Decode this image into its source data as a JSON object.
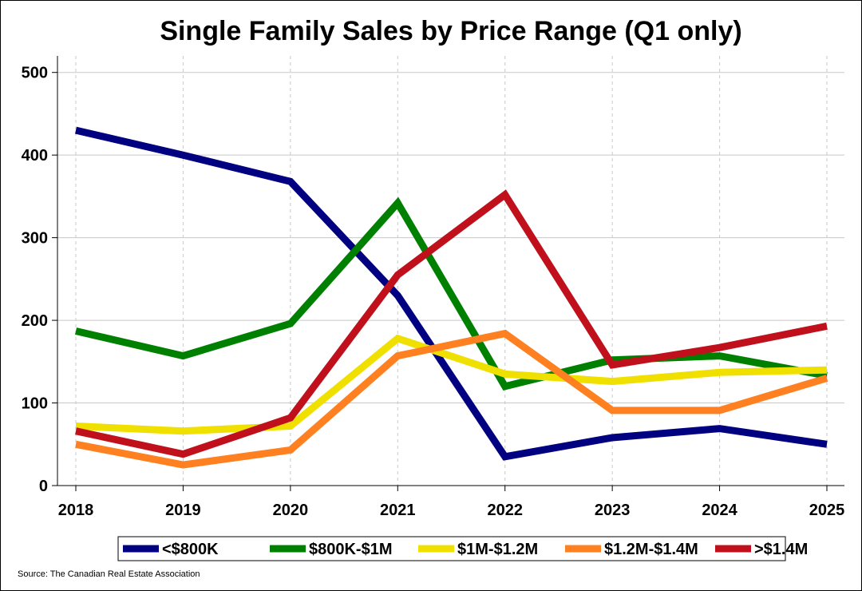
{
  "chart_data": {
    "type": "line",
    "title": "Single Family Sales by Price Range (Q1 only)",
    "xlabel": "",
    "ylabel": "",
    "categories": [
      "2018",
      "2019",
      "2020",
      "2021",
      "2022",
      "2023",
      "2024",
      "2025"
    ],
    "ylim": [
      0,
      520
    ],
    "yticks": [
      0,
      100,
      200,
      300,
      400,
      500
    ],
    "grid": {
      "horizontal": true,
      "vertical": true
    },
    "legend": "bottom",
    "series": [
      {
        "name": "<$800K",
        "color": "#000080",
        "values": [
          430,
          400,
          368,
          230,
          35,
          58,
          69,
          50
        ]
      },
      {
        "name": "$800K-$1M",
        "color": "#008000",
        "values": [
          187,
          157,
          196,
          342,
          120,
          152,
          157,
          133
        ]
      },
      {
        "name": "$1M-$1.2M",
        "color": "#f0e000",
        "values": [
          72,
          66,
          72,
          178,
          135,
          126,
          137,
          140
        ]
      },
      {
        "name": "$1.2M-$1.4M",
        "color": "#ff8020",
        "values": [
          50,
          25,
          43,
          157,
          184,
          91,
          91,
          130
        ]
      },
      {
        "name": ">$1.4M",
        "color": "#c0101c",
        "values": [
          66,
          38,
          82,
          255,
          352,
          146,
          167,
          193
        ]
      }
    ],
    "source": "Source: The Canadian Real Estate Association"
  }
}
